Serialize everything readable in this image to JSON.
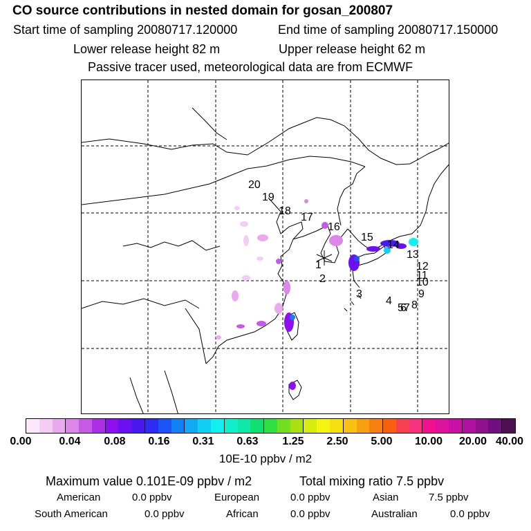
{
  "header": {
    "title": "CO  source contributions in nested domain for gosan_200807",
    "start_label": "Start time of sampling 20080717.120000",
    "end_label": "End time of sampling 20080717.150000",
    "lower_label": "Lower release height   82 m",
    "upper_label": "Upper release height   62 m",
    "note": "Passive tracer used, meteorological data are from ECMWF"
  },
  "map": {
    "trajectory_labels": [
      "1",
      "2",
      "3",
      "4",
      "5",
      "6",
      "7",
      "8",
      "9",
      "10",
      "11",
      "12",
      "13",
      "14",
      "15",
      "16",
      "17",
      "18",
      "19",
      "20"
    ],
    "release_marker": "star-icon"
  },
  "colorbar": {
    "colors": [
      "#fbe8fb",
      "#f4cdf4",
      "#eaaaf0",
      "#dc86ea",
      "#c65ae6",
      "#ad2ee6",
      "#8e0ff0",
      "#6a10f2",
      "#4a18f0",
      "#2d2cf2",
      "#1a55f5",
      "#1080f5",
      "#10aaf5",
      "#10d0f5",
      "#10f0ee",
      "#10f0cc",
      "#10e8a8",
      "#10e070",
      "#30e040",
      "#70e020",
      "#a8e010",
      "#d8ec10",
      "#f4f410",
      "#f8e010",
      "#f8c010",
      "#f8a010",
      "#f88010",
      "#f86010",
      "#f84050",
      "#f83080",
      "#f01090",
      "#e010a0",
      "#c810a8",
      "#b010a0",
      "#901090",
      "#701080",
      "#500f50"
    ],
    "ticks": [
      "0.00",
      "0.04",
      "0.08",
      "0.16",
      "0.31",
      "0.63",
      "1.25",
      "2.50",
      "5.00",
      "10.00",
      "20.00",
      "40.00"
    ],
    "units": "10E-10 ppbv / m2"
  },
  "footer": {
    "maximum": "Maximum value  0.101E-09 ppbv / m2",
    "total": "Total mixing ratio       7.5 ppbv",
    "regions": [
      {
        "name": "American",
        "value": "0.0 ppbv"
      },
      {
        "name": "European",
        "value": "0.0 ppbv"
      },
      {
        "name": "Asian",
        "value": "7.5 ppbv"
      },
      {
        "name": "South American",
        "value": "0.0 ppbv"
      },
      {
        "name": "African",
        "value": "0.0 ppbv"
      },
      {
        "name": "Australian",
        "value": "0.0 ppbv"
      }
    ]
  }
}
